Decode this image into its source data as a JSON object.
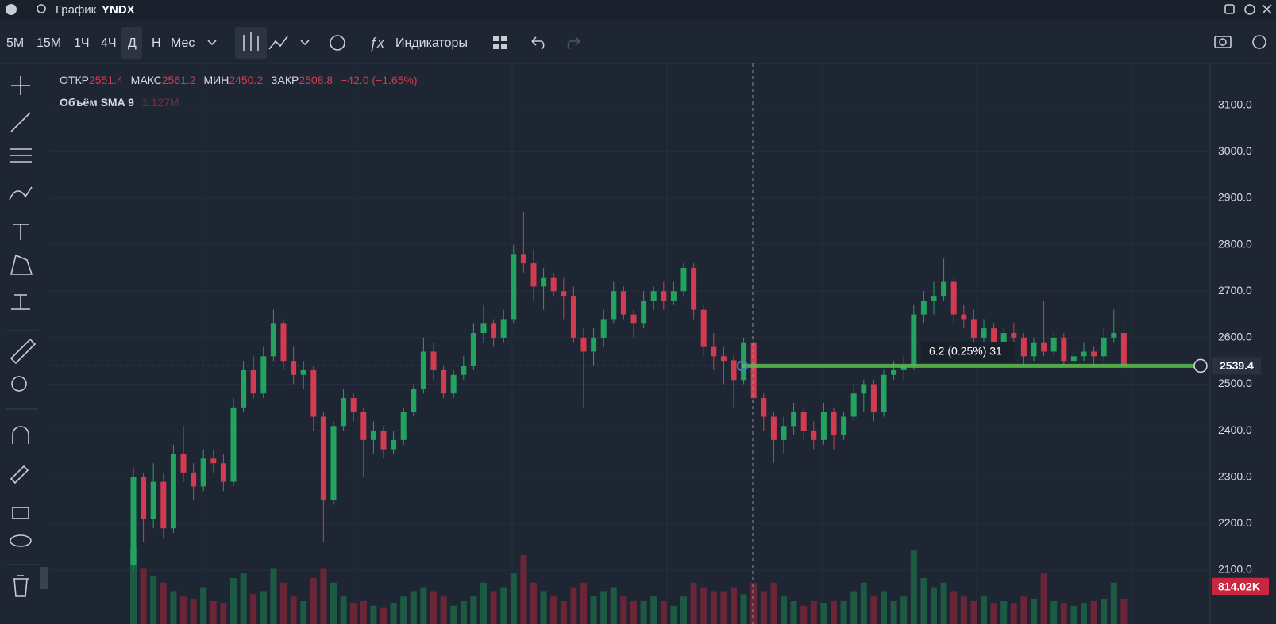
{
  "top_bar": {
    "prefix": "График",
    "symbol": "YNDX"
  },
  "toolbar": {
    "intervals": [
      "5М",
      "15М",
      "1Ч",
      "4Ч",
      "Д",
      "Н",
      "Мес"
    ],
    "indicators": "Индикаторы"
  },
  "legend": {
    "open_label": "ОТКР",
    "high_label": "МАКС",
    "low_label": "МИН",
    "close_label": "ЗАКР",
    "change": "−42.0 (−1.65%)",
    "volume_name": "Объём SMA 9",
    "volume_value": "1.127M"
  },
  "chart_data": {
    "type": "candlestick",
    "ylim": [
      1984,
      3190
    ],
    "yticks": [
      {
        "value": 2100,
        "label": "2100.0"
      },
      {
        "value": 2200,
        "label": "2200.0"
      },
      {
        "value": 2300,
        "label": "2300.0"
      },
      {
        "value": 2400,
        "label": "2400.0"
      },
      {
        "value": 2500,
        "label": "2500.0"
      },
      {
        "value": 2600,
        "label": "2600.0"
      },
      {
        "value": 2700,
        "label": "2700.0"
      },
      {
        "value": 2800,
        "label": "2800.0"
      },
      {
        "value": 2900,
        "label": "2900.0"
      },
      {
        "value": 3000,
        "label": "3000.0"
      },
      {
        "value": 3100,
        "label": "3100.0"
      }
    ],
    "grid": true,
    "up_color": "#22a35f",
    "down_color": "#d23b50",
    "candles": {
      "open": [
        2110,
        2300,
        2210,
        2290,
        2190,
        2350,
        2310,
        2280,
        2340,
        2330,
        2290,
        2450,
        2530,
        2480,
        2560,
        2630,
        2550,
        2520,
        2530,
        2430,
        2250,
        2410,
        2470,
        2440,
        2380,
        2400,
        2360,
        2380,
        2440,
        2490,
        2570,
        2530,
        2480,
        2520,
        2540,
        2610,
        2630,
        2600,
        2640,
        2780,
        2760,
        2710,
        2730,
        2700,
        2690,
        2600,
        2570,
        2600,
        2640,
        2700,
        2650,
        2630,
        2680,
        2700,
        2680,
        2700,
        2750,
        2660,
        2580,
        2560,
        2551.4,
        2508.8,
        2590,
        2470,
        2430,
        2380,
        2410,
        2440,
        2400,
        2380,
        2440,
        2390,
        2430,
        2480,
        2500,
        2440,
        2520,
        2530,
        2540,
        2650,
        2680,
        2690,
        2720,
        2650,
        2640,
        2600,
        2620,
        2580,
        2610,
        2600,
        2560,
        2590,
        2570,
        2600,
        2550,
        2560,
        2570,
        2560,
        2600,
        2610
      ],
      "high": [
        2320,
        2310,
        2330,
        2310,
        2370,
        2410,
        2330,
        2360,
        2360,
        2350,
        2470,
        2550,
        2560,
        2580,
        2660,
        2640,
        2580,
        2550,
        2540,
        2440,
        2420,
        2490,
        2480,
        2450,
        2420,
        2410,
        2400,
        2450,
        2500,
        2600,
        2590,
        2540,
        2530,
        2560,
        2630,
        2670,
        2640,
        2660,
        2800,
        2870,
        2790,
        2750,
        2740,
        2730,
        2710,
        2620,
        2620,
        2660,
        2720,
        2710,
        2660,
        2700,
        2710,
        2720,
        2720,
        2760,
        2760,
        2670,
        2610,
        2580,
        2561.2,
        2600,
        2600,
        2480,
        2440,
        2430,
        2460,
        2450,
        2420,
        2460,
        2450,
        2440,
        2500,
        2510,
        2510,
        2530,
        2550,
        2560,
        2670,
        2700,
        2720,
        2770,
        2730,
        2670,
        2660,
        2640,
        2630,
        2620,
        2630,
        2610,
        2600,
        2680,
        2610,
        2610,
        2570,
        2590,
        2580,
        2620,
        2660,
        2630
      ],
      "low": [
        2100,
        2160,
        2190,
        2170,
        2180,
        2290,
        2250,
        2270,
        2310,
        2270,
        2280,
        2440,
        2470,
        2470,
        2550,
        2530,
        2500,
        2490,
        2400,
        2160,
        2240,
        2400,
        2420,
        2300,
        2350,
        2340,
        2350,
        2370,
        2430,
        2480,
        2510,
        2470,
        2470,
        2510,
        2530,
        2590,
        2580,
        2590,
        2630,
        2740,
        2680,
        2660,
        2690,
        2640,
        2590,
        2450,
        2540,
        2580,
        2630,
        2640,
        2600,
        2620,
        2660,
        2660,
        2670,
        2690,
        2640,
        2560,
        2530,
        2500,
        2450.2,
        2500,
        2460,
        2400,
        2330,
        2350,
        2390,
        2380,
        2360,
        2370,
        2360,
        2380,
        2420,
        2440,
        2420,
        2430,
        2510,
        2510,
        2530,
        2630,
        2650,
        2680,
        2630,
        2620,
        2580,
        2590,
        2560,
        2570,
        2580,
        2540,
        2550,
        2560,
        2560,
        2540,
        2540,
        2550,
        2540,
        2550,
        2590,
        2530
      ],
      "close": [
        2300,
        2210,
        2290,
        2190,
        2350,
        2310,
        2280,
        2340,
        2330,
        2290,
        2450,
        2530,
        2480,
        2560,
        2630,
        2550,
        2520,
        2530,
        2430,
        2250,
        2410,
        2470,
        2440,
        2380,
        2400,
        2360,
        2380,
        2440,
        2490,
        2570,
        2530,
        2480,
        2520,
        2540,
        2610,
        2630,
        2600,
        2640,
        2780,
        2760,
        2710,
        2730,
        2700,
        2690,
        2600,
        2570,
        2600,
        2640,
        2700,
        2650,
        2630,
        2680,
        2700,
        2680,
        2700,
        2750,
        2660,
        2580,
        2560,
        2550,
        2508.8,
        2590,
        2470,
        2430,
        2380,
        2410,
        2440,
        2400,
        2380,
        2440,
        2390,
        2430,
        2480,
        2500,
        2440,
        2520,
        2530,
        2540,
        2650,
        2680,
        2690,
        2720,
        2650,
        2640,
        2600,
        2620,
        2580,
        2610,
        2600,
        2560,
        2590,
        2570,
        2600,
        2550,
        2560,
        2570,
        2560,
        2600,
        2610,
        2540
      ]
    },
    "volume": [
      1650000,
      1200000,
      1050000,
      900000,
      700000,
      600000,
      550000,
      800000,
      500000,
      450000,
      1000000,
      1100000,
      650000,
      700000,
      1200000,
      900000,
      600000,
      500000,
      1000000,
      1200000,
      900000,
      600000,
      450000,
      500000,
      400000,
      350000,
      450000,
      600000,
      700000,
      800000,
      700000,
      600000,
      400000,
      500000,
      600000,
      900000,
      700000,
      800000,
      1100000,
      1500000,
      900000,
      700000,
      600000,
      500000,
      800000,
      900000,
      600000,
      700000,
      800000,
      600000,
      500000,
      500000,
      600000,
      500000,
      400000,
      600000,
      900000,
      800000,
      700000,
      700000,
      800000,
      650000,
      900000,
      700000,
      900000,
      600000,
      500000,
      400000,
      500000,
      450000,
      500000,
      500000,
      700000,
      900000,
      600000,
      700000,
      500000,
      600000,
      1600000,
      1000000,
      800000,
      900000,
      700000,
      600000,
      500000,
      600000,
      450000,
      500000,
      450000,
      600000,
      550000,
      1100000,
      500000,
      450000,
      400000,
      450000,
      500000,
      550000,
      900000,
      550000
    ],
    "volume_label": {
      "value": 814020,
      "label": "814.02K"
    },
    "ray": 2539.4,
    "measure": "6.2 (0.25%) 31"
  }
}
